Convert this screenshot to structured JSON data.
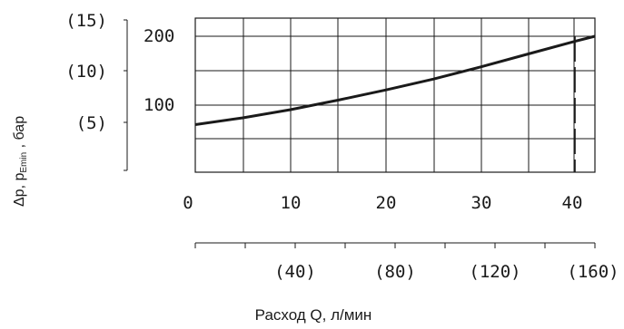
{
  "chart_data": {
    "type": "line",
    "x_bottom": {
      "label": "Расход Q, л/мин",
      "ticks": [
        "(40)",
        "(80)",
        "(120)",
        "(160)"
      ],
      "tick_values": [
        40,
        80,
        120,
        160
      ],
      "range": [
        0,
        160
      ]
    },
    "x_top": {
      "ticks": [
        "0",
        "10",
        "20",
        "30",
        "40"
      ],
      "tick_values": [
        0,
        10,
        20,
        30,
        40
      ],
      "range": [
        0,
        42
      ]
    },
    "y_inner": {
      "ticks": [
        "200",
        "100"
      ],
      "tick_values": [
        200,
        100
      ],
      "range": [
        0,
        200
      ]
    },
    "y_outer": {
      "label_main": "Δp, p",
      "label_sub": "Emin",
      "label_tail": " , бар",
      "ticks": [
        "(15)",
        "(10)",
        "(5)"
      ],
      "tick_values": [
        15,
        10,
        5
      ],
      "range": [
        0,
        15
      ]
    },
    "series": [
      {
        "x": [
          0,
          5,
          10,
          15,
          20,
          25,
          30,
          35,
          40,
          42
        ],
        "y": [
          70,
          80,
          92,
          106,
          121,
          137,
          155,
          174,
          193,
          200
        ]
      }
    ],
    "dashed_marker_x": 40,
    "grid": true
  }
}
